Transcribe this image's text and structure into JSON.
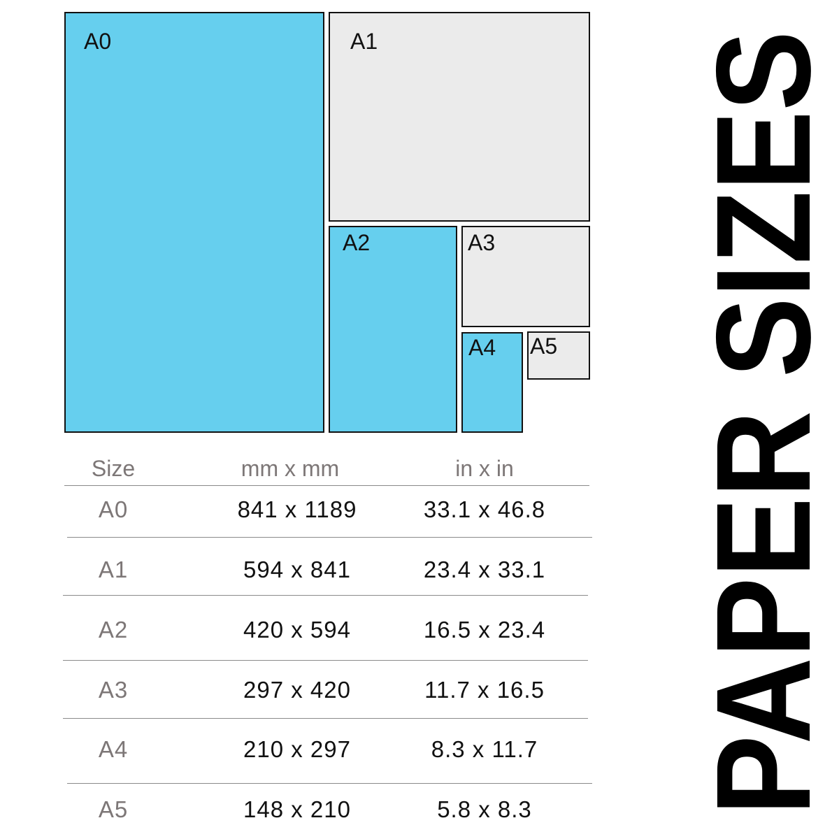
{
  "title": "PAPER SIZES",
  "colors": {
    "blue": "#66cfee",
    "gray": "#ebebeb",
    "border": "#111111",
    "header_text": "#7d7777"
  },
  "sheets": [
    {
      "label": "A0",
      "fill": "blue"
    },
    {
      "label": "A1",
      "fill": "gray"
    },
    {
      "label": "A2",
      "fill": "blue"
    },
    {
      "label": "A3",
      "fill": "gray"
    },
    {
      "label": "A4",
      "fill": "blue"
    },
    {
      "label": "A5",
      "fill": "gray"
    }
  ],
  "table": {
    "headers": [
      "Size",
      "mm x mm",
      "in x in"
    ],
    "rows": [
      [
        "A0",
        "841 x 1189",
        "33.1 x 46.8"
      ],
      [
        "A1",
        "594 x 841",
        "23.4 x 33.1"
      ],
      [
        "A2",
        "420 x 594",
        "16.5 x 23.4"
      ],
      [
        "A3",
        "297 x 420",
        "11.7 x 16.5"
      ],
      [
        "A4",
        "210 x 297",
        "8.3 x 11.7"
      ],
      [
        "A5",
        "148 x 210",
        "5.8 x 8.3"
      ]
    ]
  }
}
